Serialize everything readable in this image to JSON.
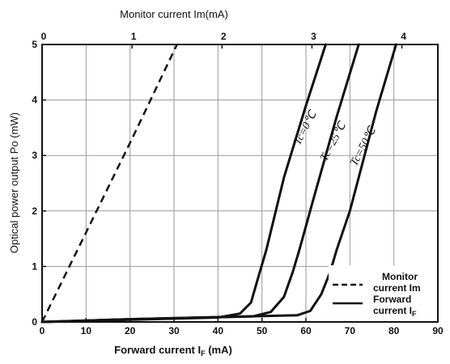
{
  "chart_data": {
    "type": "line",
    "title": "",
    "xlabel": "Forward current I_F (mA)",
    "xlabel_parts": {
      "main": "Forward current ",
      "sym": "I",
      "sub": "F",
      "unit": " (mA)"
    },
    "ylabel": "Optical power output Po (mW)",
    "x2label": "Monitor current Im(mA)",
    "xlim": [
      0,
      90
    ],
    "ylim": [
      0,
      5
    ],
    "x2lim": [
      0,
      4.4
    ],
    "x_ticks": [
      0,
      10,
      20,
      30,
      40,
      50,
      60,
      70,
      80,
      90
    ],
    "y_ticks": [
      0,
      1,
      2,
      3,
      4,
      5
    ],
    "x2_ticks": [
      0,
      1,
      2,
      3,
      4
    ],
    "grid": true,
    "legend_position": "bottom-right",
    "series": [
      {
        "name": "Tc=0°C",
        "axis": "forward",
        "line_style": "solid",
        "points": [
          [
            0,
            0
          ],
          [
            20,
            0.04
          ],
          [
            40,
            0.08
          ],
          [
            45,
            0.15
          ],
          [
            47.5,
            0.35
          ],
          [
            49.5,
            0.9
          ],
          [
            51,
            1.3
          ],
          [
            55,
            2.6
          ],
          [
            60,
            3.9
          ],
          [
            64.5,
            5.0
          ]
        ]
      },
      {
        "name": "Tc=25°C",
        "axis": "forward",
        "line_style": "solid",
        "points": [
          [
            0,
            0
          ],
          [
            20,
            0.05
          ],
          [
            48,
            0.1
          ],
          [
            52,
            0.18
          ],
          [
            55,
            0.45
          ],
          [
            57,
            0.9
          ],
          [
            58.5,
            1.3
          ],
          [
            62,
            2.3
          ],
          [
            67,
            3.7
          ],
          [
            72,
            5.0
          ]
        ]
      },
      {
        "name": "Tc=50°C",
        "axis": "forward",
        "line_style": "solid",
        "points": [
          [
            0,
            0
          ],
          [
            20,
            0.05
          ],
          [
            58,
            0.12
          ],
          [
            61,
            0.2
          ],
          [
            63.5,
            0.5
          ],
          [
            65.5,
            0.9
          ],
          [
            67,
            1.3
          ],
          [
            70,
            2.0
          ],
          [
            76,
            3.8
          ],
          [
            80.5,
            5.0
          ]
        ]
      },
      {
        "name": "Monitor current Im",
        "axis": "monitor",
        "line_style": "dashed",
        "points": [
          [
            0,
            0
          ],
          [
            0.5,
            1.65
          ],
          [
            1.0,
            3.3
          ],
          [
            1.5,
            5.0
          ]
        ]
      }
    ],
    "curve_labels": [
      "Tc=0℃",
      "Tc=25℃",
      "Tc=50℃"
    ],
    "legend": [
      {
        "style": "dashed",
        "line1": "Monitor",
        "line2": "current Im"
      },
      {
        "style": "solid",
        "line1": "Forward",
        "line2": "current I",
        "sub": "F"
      }
    ]
  }
}
